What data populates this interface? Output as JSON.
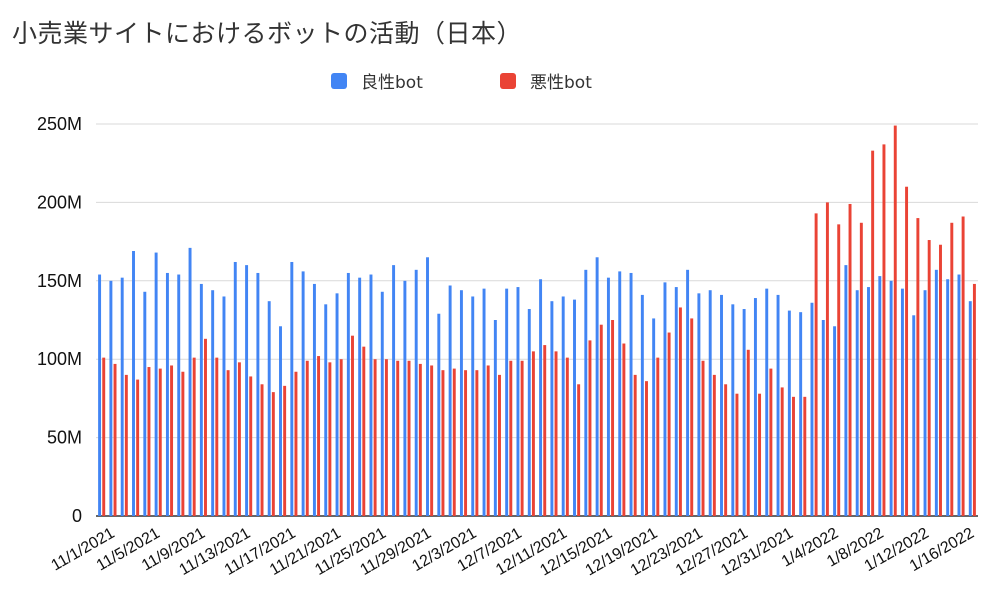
{
  "chart_data": {
    "type": "bar",
    "title": "小売業サイトにおけるボットの活動（日本）",
    "xlabel": "",
    "ylabel": "",
    "ylim": [
      0,
      250000000
    ],
    "y_ticks": [
      0,
      50000000,
      100000000,
      150000000,
      200000000,
      250000000
    ],
    "y_tick_labels": [
      "0",
      "50M",
      "100M",
      "150M",
      "200M",
      "250M"
    ],
    "grid": true,
    "legend_position": "top-center",
    "colors": {
      "good": "#4285F4",
      "bad": "#EA4335",
      "grid": "#d9d9d9"
    },
    "x_tick_labels": [
      "11/1/2021",
      "11/5/2021",
      "11/9/2021",
      "11/13/2021",
      "11/17/2021",
      "11/21/2021",
      "11/25/2021",
      "11/29/2021",
      "12/3/2021",
      "12/7/2021",
      "12/11/2021",
      "12/15/2021",
      "12/19/2021",
      "12/23/2021",
      "12/27/2021",
      "12/31/2021",
      "1/4/2022",
      "1/8/2022",
      "1/12/2022",
      "1/16/2022"
    ],
    "categories": [
      "11/1/2021",
      "11/2/2021",
      "11/3/2021",
      "11/4/2021",
      "11/5/2021",
      "11/6/2021",
      "11/7/2021",
      "11/8/2021",
      "11/9/2021",
      "11/10/2021",
      "11/11/2021",
      "11/12/2021",
      "11/13/2021",
      "11/14/2021",
      "11/15/2021",
      "11/16/2021",
      "11/17/2021",
      "11/18/2021",
      "11/19/2021",
      "11/20/2021",
      "11/21/2021",
      "11/22/2021",
      "11/23/2021",
      "11/24/2021",
      "11/25/2021",
      "11/26/2021",
      "11/27/2021",
      "11/28/2021",
      "11/29/2021",
      "11/30/2021",
      "12/1/2021",
      "12/2/2021",
      "12/3/2021",
      "12/4/2021",
      "12/5/2021",
      "12/6/2021",
      "12/7/2021",
      "12/8/2021",
      "12/9/2021",
      "12/10/2021",
      "12/11/2021",
      "12/12/2021",
      "12/13/2021",
      "12/14/2021",
      "12/15/2021",
      "12/16/2021",
      "12/17/2021",
      "12/18/2021",
      "12/19/2021",
      "12/20/2021",
      "12/21/2021",
      "12/22/2021",
      "12/23/2021",
      "12/24/2021",
      "12/25/2021",
      "12/26/2021",
      "12/27/2021",
      "12/28/2021",
      "12/29/2021",
      "12/30/2021",
      "12/31/2021",
      "1/1/2022",
      "1/2/2022",
      "1/3/2022",
      "1/4/2022",
      "1/5/2022",
      "1/6/2022",
      "1/7/2022",
      "1/8/2022",
      "1/9/2022",
      "1/10/2022",
      "1/11/2022",
      "1/12/2022",
      "1/13/2022",
      "1/14/2022",
      "1/15/2022",
      "1/16/2022",
      "1/17/2022"
    ],
    "series": [
      {
        "name": "良性bot",
        "color": "#4285F4",
        "values": [
          154000000,
          150000000,
          152000000,
          169000000,
          143000000,
          168000000,
          155000000,
          154000000,
          171000000,
          148000000,
          144000000,
          140000000,
          162000000,
          160000000,
          155000000,
          137000000,
          121000000,
          162000000,
          156000000,
          148000000,
          135000000,
          142000000,
          155000000,
          152000000,
          154000000,
          143000000,
          160000000,
          150000000,
          157000000,
          165000000,
          129000000,
          147000000,
          144000000,
          140000000,
          145000000,
          125000000,
          145000000,
          146000000,
          132000000,
          151000000,
          137000000,
          140000000,
          138000000,
          157000000,
          165000000,
          152000000,
          156000000,
          155000000,
          141000000,
          126000000,
          149000000,
          146000000,
          157000000,
          142000000,
          144000000,
          141000000,
          135000000,
          132000000,
          139000000,
          145000000,
          141000000,
          131000000,
          130000000,
          136000000,
          125000000,
          121000000,
          160000000,
          144000000,
          146000000,
          153000000,
          150000000,
          145000000,
          128000000,
          144000000,
          157000000,
          151000000,
          154000000,
          137000000
        ]
      },
      {
        "name": "悪性bot",
        "color": "#EA4335",
        "values": [
          101000000,
          97000000,
          90000000,
          87000000,
          95000000,
          94000000,
          96000000,
          92000000,
          101000000,
          113000000,
          101000000,
          93000000,
          98000000,
          89000000,
          84000000,
          79000000,
          83000000,
          92000000,
          99000000,
          102000000,
          98000000,
          100000000,
          115000000,
          108000000,
          100000000,
          100000000,
          99000000,
          99000000,
          97000000,
          96000000,
          93000000,
          94000000,
          93000000,
          93000000,
          96000000,
          90000000,
          99000000,
          99000000,
          105000000,
          109000000,
          105000000,
          101000000,
          84000000,
          112000000,
          122000000,
          125000000,
          110000000,
          90000000,
          86000000,
          101000000,
          117000000,
          133000000,
          126000000,
          99000000,
          90000000,
          84000000,
          78000000,
          106000000,
          78000000,
          94000000,
          82000000,
          76000000,
          76000000,
          193000000,
          200000000,
          186000000,
          199000000,
          187000000,
          233000000,
          237000000,
          249000000,
          210000000,
          190000000,
          176000000,
          173000000,
          187000000,
          191000000,
          148000000
        ]
      }
    ]
  }
}
